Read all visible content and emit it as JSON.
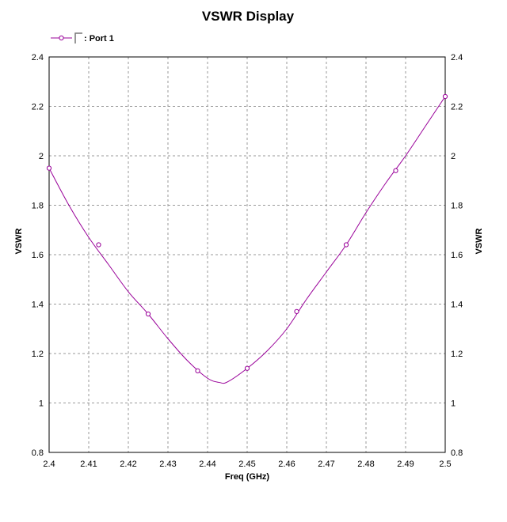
{
  "chart_data": {
    "type": "line",
    "title": "VSWR Display",
    "xlabel": "Freq (GHz)",
    "ylabel_left": "VSWR",
    "ylabel_right": "VSWR",
    "xlim": [
      2.4,
      2.5
    ],
    "ylim": [
      0.8,
      2.4
    ],
    "x_ticks": [
      "2.4",
      "2.41",
      "2.42",
      "2.43",
      "2.44",
      "2.45",
      "2.46",
      "2.47",
      "2.48",
      "2.49",
      "2.5"
    ],
    "y_ticks": [
      "0.8",
      "1",
      "1.2",
      "1.4",
      "1.6",
      "1.8",
      "2",
      "2.2",
      "2.4"
    ],
    "grid": true,
    "legend_position": "top-left",
    "series": [
      {
        "name": ": Port 1",
        "color": "#990099",
        "curve": {
          "x": [
            2.4,
            2.405,
            2.41,
            2.415,
            2.42,
            2.425,
            2.43,
            2.435,
            2.44,
            2.443,
            2.445,
            2.45,
            2.455,
            2.46,
            2.465,
            2.47,
            2.475,
            2.48,
            2.485,
            2.49,
            2.495,
            2.5
          ],
          "y": [
            1.95,
            1.8,
            1.67,
            1.56,
            1.45,
            1.36,
            1.26,
            1.17,
            1.1,
            1.083,
            1.085,
            1.14,
            1.21,
            1.3,
            1.42,
            1.53,
            1.64,
            1.77,
            1.89,
            2.0,
            2.12,
            2.24
          ]
        },
        "markers": {
          "x": [
            2.4,
            2.4125,
            2.425,
            2.4375,
            2.45,
            2.4625,
            2.475,
            2.4875,
            2.5
          ],
          "y": [
            1.95,
            1.64,
            1.36,
            1.13,
            1.14,
            1.37,
            1.64,
            1.94,
            2.24
          ]
        }
      }
    ]
  }
}
